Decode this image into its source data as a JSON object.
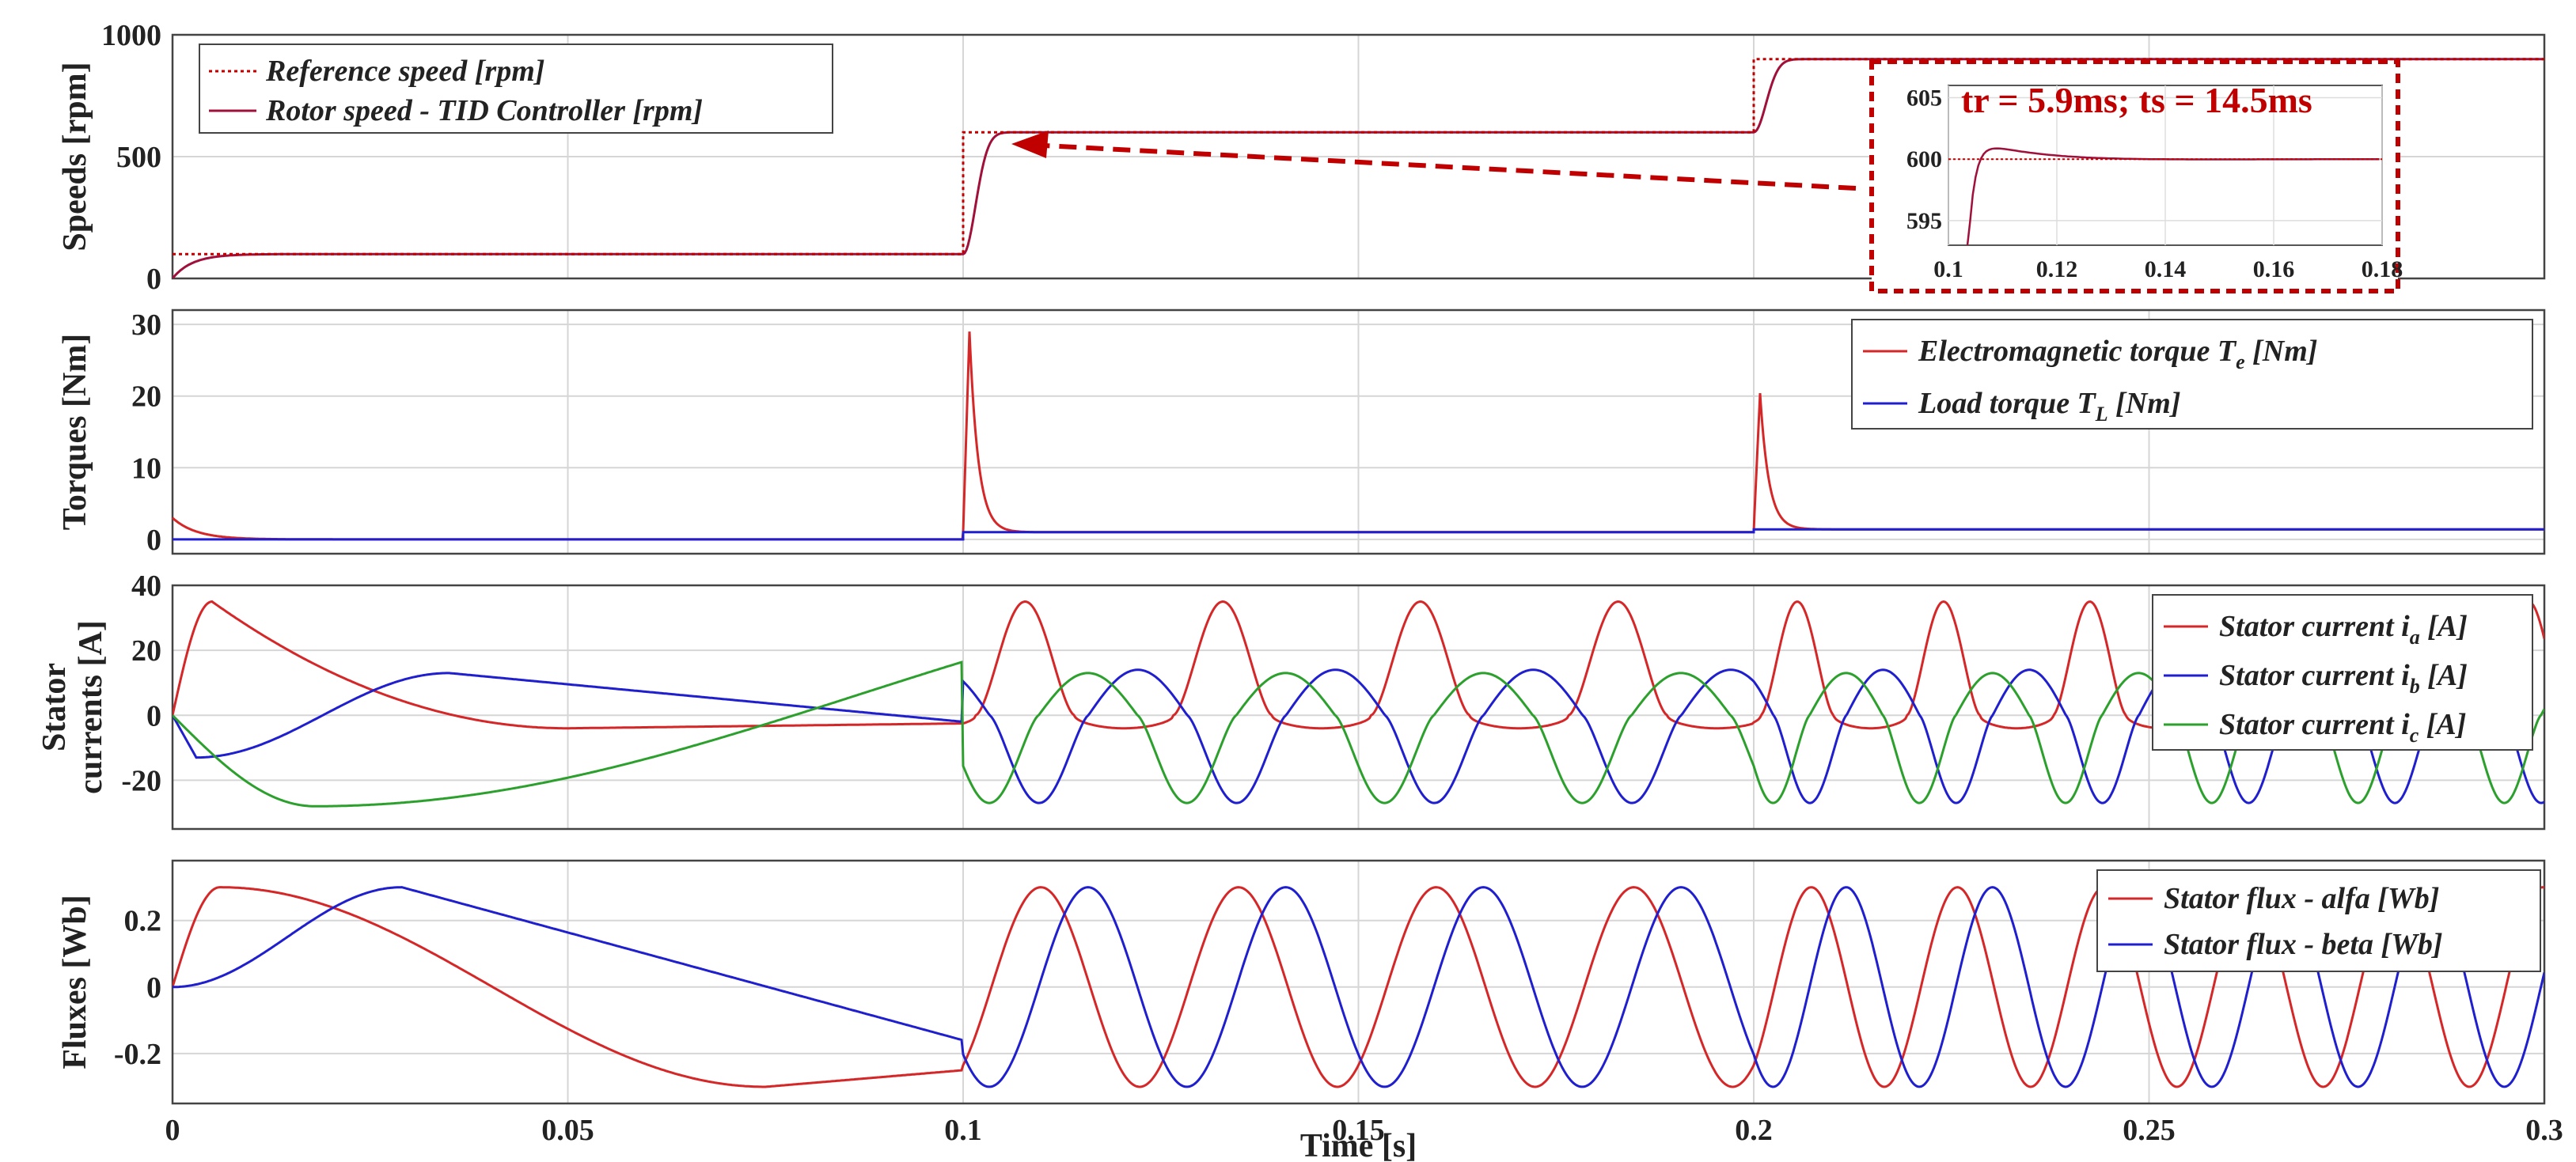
{
  "chart_data": [
    {
      "type": "line",
      "ylabel": "Speeds [rpm]",
      "ylim": [
        0,
        1000
      ],
      "xlim": [
        0,
        0.3
      ],
      "yticks": [
        "0",
        "500",
        "1000"
      ],
      "grid": true,
      "legend_position": "top-left",
      "series": [
        {
          "name": "Reference speed [rpm]",
          "color": "#c00000",
          "style": "dotted",
          "x": [
            0,
            0.1,
            0.1,
            0.2,
            0.2,
            0.3
          ],
          "y": [
            100,
            100,
            600,
            600,
            900,
            900
          ]
        },
        {
          "name": "Rotor speed - TID Controller [rpm]",
          "color": "#a0103a",
          "style": "solid",
          "x": [
            0,
            0.002,
            0.005,
            0.01,
            0.1,
            0.1015,
            0.103,
            0.1059,
            0.109,
            0.2,
            0.2015,
            0.203,
            0.206,
            0.3
          ],
          "y": [
            0,
            60,
            90,
            100,
            100,
            250,
            500,
            600,
            601,
            600,
            750,
            860,
            900,
            900
          ]
        }
      ],
      "inset": {
        "xlim": [
          0.1,
          0.18
        ],
        "ylim": [
          593,
          606
        ],
        "xticks": [
          "0.1",
          "0.12",
          "0.14",
          "0.16",
          "0.18"
        ],
        "yticks": [
          "595",
          "600",
          "605"
        ],
        "annotation": "tr = 5.9ms; ts = 14.5ms"
      }
    },
    {
      "type": "line",
      "ylabel": "Torques [Nm]",
      "ylim": [
        -2,
        32
      ],
      "xlim": [
        0,
        0.3
      ],
      "yticks": [
        "0",
        "10",
        "20",
        "30"
      ],
      "grid": true,
      "legend_position": "top-right",
      "series": [
        {
          "name": "Electromagnetic torque T",
          "sub": "e",
          "unit": " [Nm]",
          "color": "#d62728",
          "x": [
            0,
            0.002,
            0.005,
            0.01,
            0.1,
            0.1005,
            0.101,
            0.1015,
            0.103,
            0.105,
            0.108,
            0.2,
            0.2005,
            0.201,
            0.203,
            0.206,
            0.3
          ],
          "y": [
            3,
            2,
            0.8,
            0,
            0,
            8,
            29,
            22,
            10,
            3,
            1.1,
            1.1,
            20,
            13,
            5,
            1.4,
            1.4
          ]
        },
        {
          "name": "Load torque T",
          "sub": "L",
          "unit": " [Nm]",
          "color": "#1f1fcf",
          "x": [
            0,
            0.1,
            0.1,
            0.2,
            0.2,
            0.3
          ],
          "y": [
            0,
            0,
            1,
            1,
            1.4,
            1.4
          ]
        }
      ]
    },
    {
      "type": "line",
      "ylabel": [
        "Stator",
        "currents [A]"
      ],
      "ylim": [
        -35,
        40
      ],
      "xlim": [
        0,
        0.3
      ],
      "yticks": [
        "-20",
        "0",
        "20",
        "40"
      ],
      "grid": true,
      "legend_position": "top-right",
      "series": [
        {
          "name": "Stator current i",
          "sub": "a",
          "unit": " [A]",
          "color": "#d62728"
        },
        {
          "name": "Stator current i",
          "sub": "b",
          "unit": " [A]",
          "color": "#1f1fcf"
        },
        {
          "name": "Stator current i",
          "sub": "c",
          "unit": " [A]",
          "color": "#2ca02c"
        }
      ],
      "signal": {
        "amplitude": 35,
        "period_1": 0.025,
        "period_2": 0.0185,
        "start_peak_a": 0.11,
        "start_peak_b": 0.114
      }
    },
    {
      "type": "line",
      "ylabel": "Fluxes [Wb]",
      "ylim": [
        -0.35,
        0.38
      ],
      "xlim": [
        0,
        0.3
      ],
      "yticks": [
        "-0.2",
        "0",
        "0.2"
      ],
      "xticks": [
        "0",
        "0.05",
        "0.1",
        "0.15",
        "0.2",
        "0.25",
        "0.3"
      ],
      "xlabel": "Time [s]",
      "grid": true,
      "legend_position": "top-right",
      "series": [
        {
          "name": "Stator flux - alfa [Wb]",
          "color": "#d62728"
        },
        {
          "name": "Stator flux - beta [Wb]",
          "color": "#1f1fcf"
        }
      ],
      "signal": {
        "amplitude": 0.3,
        "period_1": 0.025,
        "period_2": 0.0185
      }
    }
  ]
}
